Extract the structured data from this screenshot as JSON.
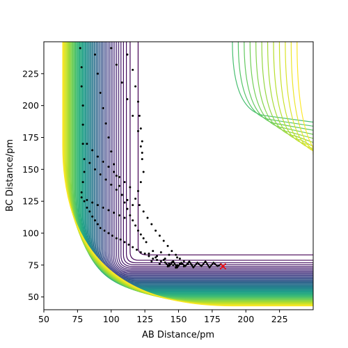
{
  "chart_data": {
    "type": "contour",
    "title": "",
    "xlabel": "AB Distance/pm",
    "ylabel": "BC Distance/pm",
    "xlim": [
      50,
      250
    ],
    "ylim": [
      40,
      250
    ],
    "x_ticks": [
      50,
      75,
      100,
      125,
      150,
      175,
      200,
      225
    ],
    "y_ticks": [
      50,
      75,
      100,
      125,
      150,
      175,
      200,
      225
    ],
    "x_tick_labels": [
      "50",
      "75",
      "100",
      "125",
      "150",
      "175",
      "200",
      "225"
    ],
    "y_tick_labels": [
      "50",
      "75",
      "100",
      "125",
      "150",
      "175",
      "200",
      "225"
    ],
    "colormap": [
      "#440154",
      "#482878",
      "#3e4989",
      "#31688e",
      "#26828e",
      "#1f9e89",
      "#35b779",
      "#6ece58",
      "#b5de2b",
      "#fde725"
    ],
    "grid": false,
    "legend": "none",
    "series": [
      {
        "type": "scatter",
        "marker": "dot",
        "color": "#000000",
        "points_approx": [
          [
            77,
            245
          ],
          [
            78,
            230
          ],
          [
            78,
            215
          ],
          [
            79,
            200
          ],
          [
            79,
            185
          ],
          [
            79,
            170
          ],
          [
            80,
            158
          ],
          [
            80,
            148
          ],
          [
            79,
            140
          ],
          [
            78,
            132
          ],
          [
            80,
            125
          ],
          [
            82,
            120
          ],
          [
            84,
            117
          ],
          [
            86,
            113
          ],
          [
            88,
            110
          ],
          [
            90,
            107
          ],
          [
            92,
            104
          ],
          [
            95,
            102
          ],
          [
            98,
            100
          ],
          [
            101,
            98
          ],
          [
            104,
            96
          ],
          [
            107,
            95
          ],
          [
            110,
            93
          ],
          [
            113,
            91
          ],
          [
            116,
            89
          ],
          [
            119,
            87
          ],
          [
            122,
            85
          ],
          [
            125,
            84
          ],
          [
            128,
            82
          ],
          [
            131,
            80
          ],
          [
            134,
            79
          ],
          [
            137,
            78
          ],
          [
            140,
            77
          ],
          [
            143,
            76
          ],
          [
            146,
            75
          ],
          [
            149,
            75
          ],
          [
            88,
            240
          ],
          [
            90,
            225
          ],
          [
            92,
            210
          ],
          [
            94,
            198
          ],
          [
            96,
            186
          ],
          [
            98,
            175
          ],
          [
            100,
            164
          ],
          [
            102,
            154
          ],
          [
            104,
            145
          ],
          [
            106,
            137
          ],
          [
            108,
            130
          ],
          [
            110,
            124
          ],
          [
            112,
            119
          ],
          [
            114,
            114
          ],
          [
            116,
            110
          ],
          [
            118,
            106
          ],
          [
            120,
            102
          ],
          [
            122,
            99
          ],
          [
            124,
            96
          ],
          [
            126,
            93
          ],
          [
            100,
            245
          ],
          [
            104,
            232
          ],
          [
            108,
            218
          ],
          [
            112,
            205
          ],
          [
            116,
            192
          ],
          [
            120,
            180
          ],
          [
            122,
            168
          ],
          [
            123,
            158
          ],
          [
            124,
            148
          ],
          [
            122,
            140
          ],
          [
            120,
            133
          ],
          [
            118,
            127
          ],
          [
            121,
            122
          ],
          [
            124,
            117
          ],
          [
            127,
            112
          ],
          [
            130,
            107
          ],
          [
            133,
            102
          ],
          [
            136,
            98
          ],
          [
            139,
            94
          ],
          [
            142,
            90
          ],
          [
            145,
            86
          ],
          [
            148,
            83
          ],
          [
            151,
            80
          ],
          [
            154,
            78
          ],
          [
            157,
            76
          ],
          [
            160,
            75
          ],
          [
            112,
            240
          ],
          [
            116,
            228
          ],
          [
            118,
            215
          ],
          [
            120,
            203
          ],
          [
            121,
            192
          ],
          [
            122,
            182
          ],
          [
            123,
            172
          ],
          [
            123,
            163
          ],
          [
            84,
            155
          ],
          [
            88,
            150
          ],
          [
            92,
            146
          ],
          [
            96,
            142
          ],
          [
            100,
            138
          ],
          [
            104,
            134
          ],
          [
            108,
            130
          ],
          [
            112,
            126
          ],
          [
            116,
            122
          ],
          [
            82,
            170
          ],
          [
            86,
            165
          ],
          [
            90,
            160
          ],
          [
            94,
            156
          ],
          [
            98,
            152
          ],
          [
            102,
            148
          ],
          [
            106,
            144
          ],
          [
            110,
            140
          ],
          [
            114,
            136
          ],
          [
            78,
            128
          ],
          [
            82,
            126
          ],
          [
            86,
            124
          ],
          [
            90,
            122
          ],
          [
            94,
            120
          ],
          [
            98,
            118
          ],
          [
            102,
            116
          ],
          [
            106,
            114
          ],
          [
            110,
            112
          ],
          [
            128,
            84
          ],
          [
            131,
            86
          ],
          [
            134,
            82
          ],
          [
            137,
            85
          ],
          [
            140,
            80
          ],
          [
            143,
            83
          ],
          [
            146,
            78
          ],
          [
            149,
            81
          ],
          [
            152,
            76
          ],
          [
            130,
            78
          ],
          [
            133,
            81
          ],
          [
            136,
            76
          ],
          [
            139,
            79
          ],
          [
            142,
            74
          ],
          [
            145,
            77
          ],
          [
            148,
            73
          ],
          [
            151,
            76
          ],
          [
            154,
            74
          ]
        ]
      },
      {
        "type": "trajectory",
        "color": "#000000",
        "points_approx": [
          [
            140,
            77
          ],
          [
            143,
            74
          ],
          [
            146,
            78
          ],
          [
            149,
            73
          ],
          [
            152,
            77
          ],
          [
            155,
            74
          ],
          [
            158,
            78
          ],
          [
            161,
            73
          ],
          [
            164,
            77
          ],
          [
            167,
            74
          ],
          [
            170,
            78
          ],
          [
            173,
            73
          ],
          [
            176,
            77
          ],
          [
            179,
            74
          ],
          [
            182,
            76
          ]
        ]
      },
      {
        "type": "marker",
        "marker": "x",
        "color": "#ff0000",
        "points": [
          [
            183,
            74
          ]
        ]
      }
    ]
  }
}
